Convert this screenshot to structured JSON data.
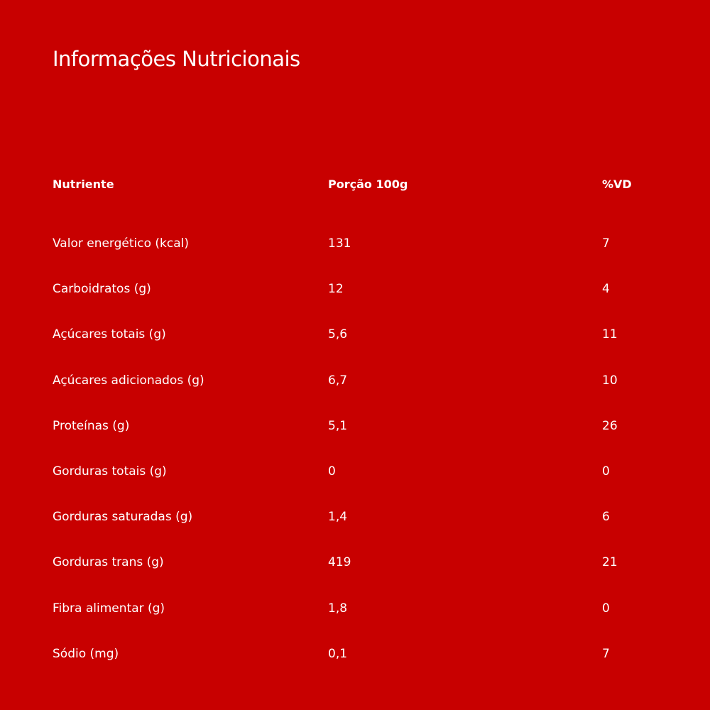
{
  "header": {
    "title": "Informações Nutricionais"
  },
  "table": {
    "columns": [
      "Nutriente",
      "Porção 100g",
      "%VD"
    ],
    "rows": [
      [
        "Valor energético (kcal)",
        "131",
        "7"
      ],
      [
        "Carboidratos (g)",
        "12",
        "4"
      ],
      [
        "Açúcares totais (g)",
        "5,6",
        "11"
      ],
      [
        "Açúcares adicionados (g)",
        "6,7",
        "10"
      ],
      [
        "Proteínas (g)",
        "5,1",
        "26"
      ],
      [
        "Gorduras totais (g)",
        "0",
        "0"
      ],
      [
        "Gorduras saturadas (g)",
        "1,4",
        "6"
      ],
      [
        "Gorduras trans (g)",
        "419",
        "21"
      ],
      [
        "Fibra alimentar (g)",
        "1,8",
        "0"
      ],
      [
        "Sódio (mg)",
        "0,1",
        "7"
      ]
    ]
  }
}
